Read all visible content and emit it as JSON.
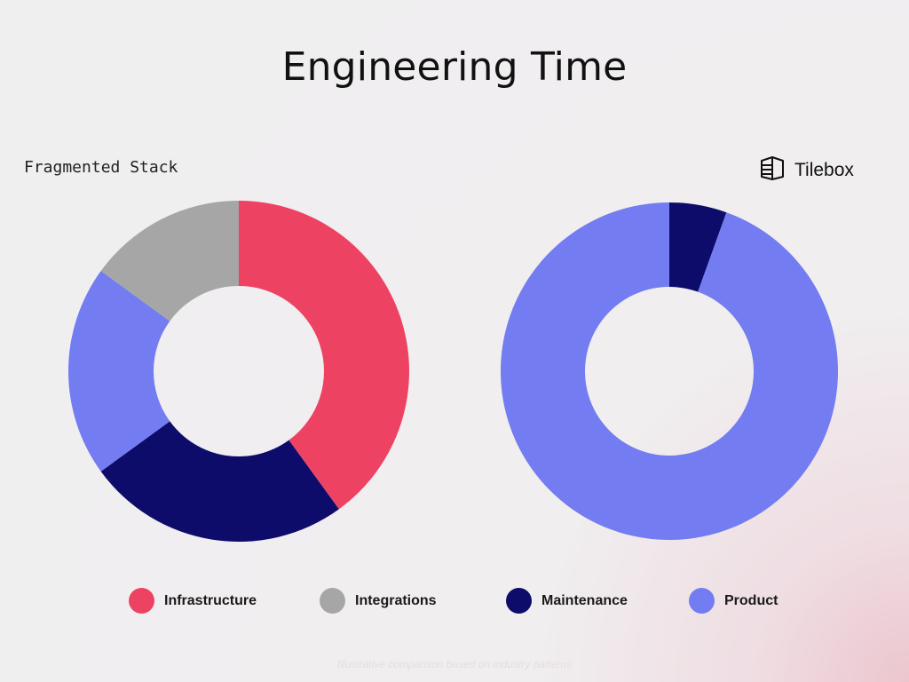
{
  "title": "Engineering Time",
  "left_chart_label": "Fragmented Stack",
  "brand": {
    "name": "Tilebox",
    "icon": "tilebox-logo-icon"
  },
  "colors": {
    "Infrastructure": "#ee4263",
    "Integrations": "#a6a6a6",
    "Maintenance": "#0d0c6b",
    "Product": "#737cf0"
  },
  "chart_data": [
    {
      "type": "pie",
      "label": "Fragmented Stack",
      "categories": [
        "Infrastructure",
        "Maintenance",
        "Product",
        "Integrations"
      ],
      "values": [
        40,
        25,
        20,
        15
      ]
    },
    {
      "type": "pie",
      "label": "Tilebox",
      "categories": [
        "Maintenance",
        "Product"
      ],
      "values": [
        5.5,
        94.5
      ]
    }
  ],
  "legend": [
    {
      "label": "Infrastructure",
      "color": "#ee4263"
    },
    {
      "label": "Integrations",
      "color": "#a6a6a6"
    },
    {
      "label": "Maintenance",
      "color": "#0d0c6b"
    },
    {
      "label": "Product",
      "color": "#737cf0"
    }
  ],
  "footnote": "Illustrative comparison based on industry patterns"
}
